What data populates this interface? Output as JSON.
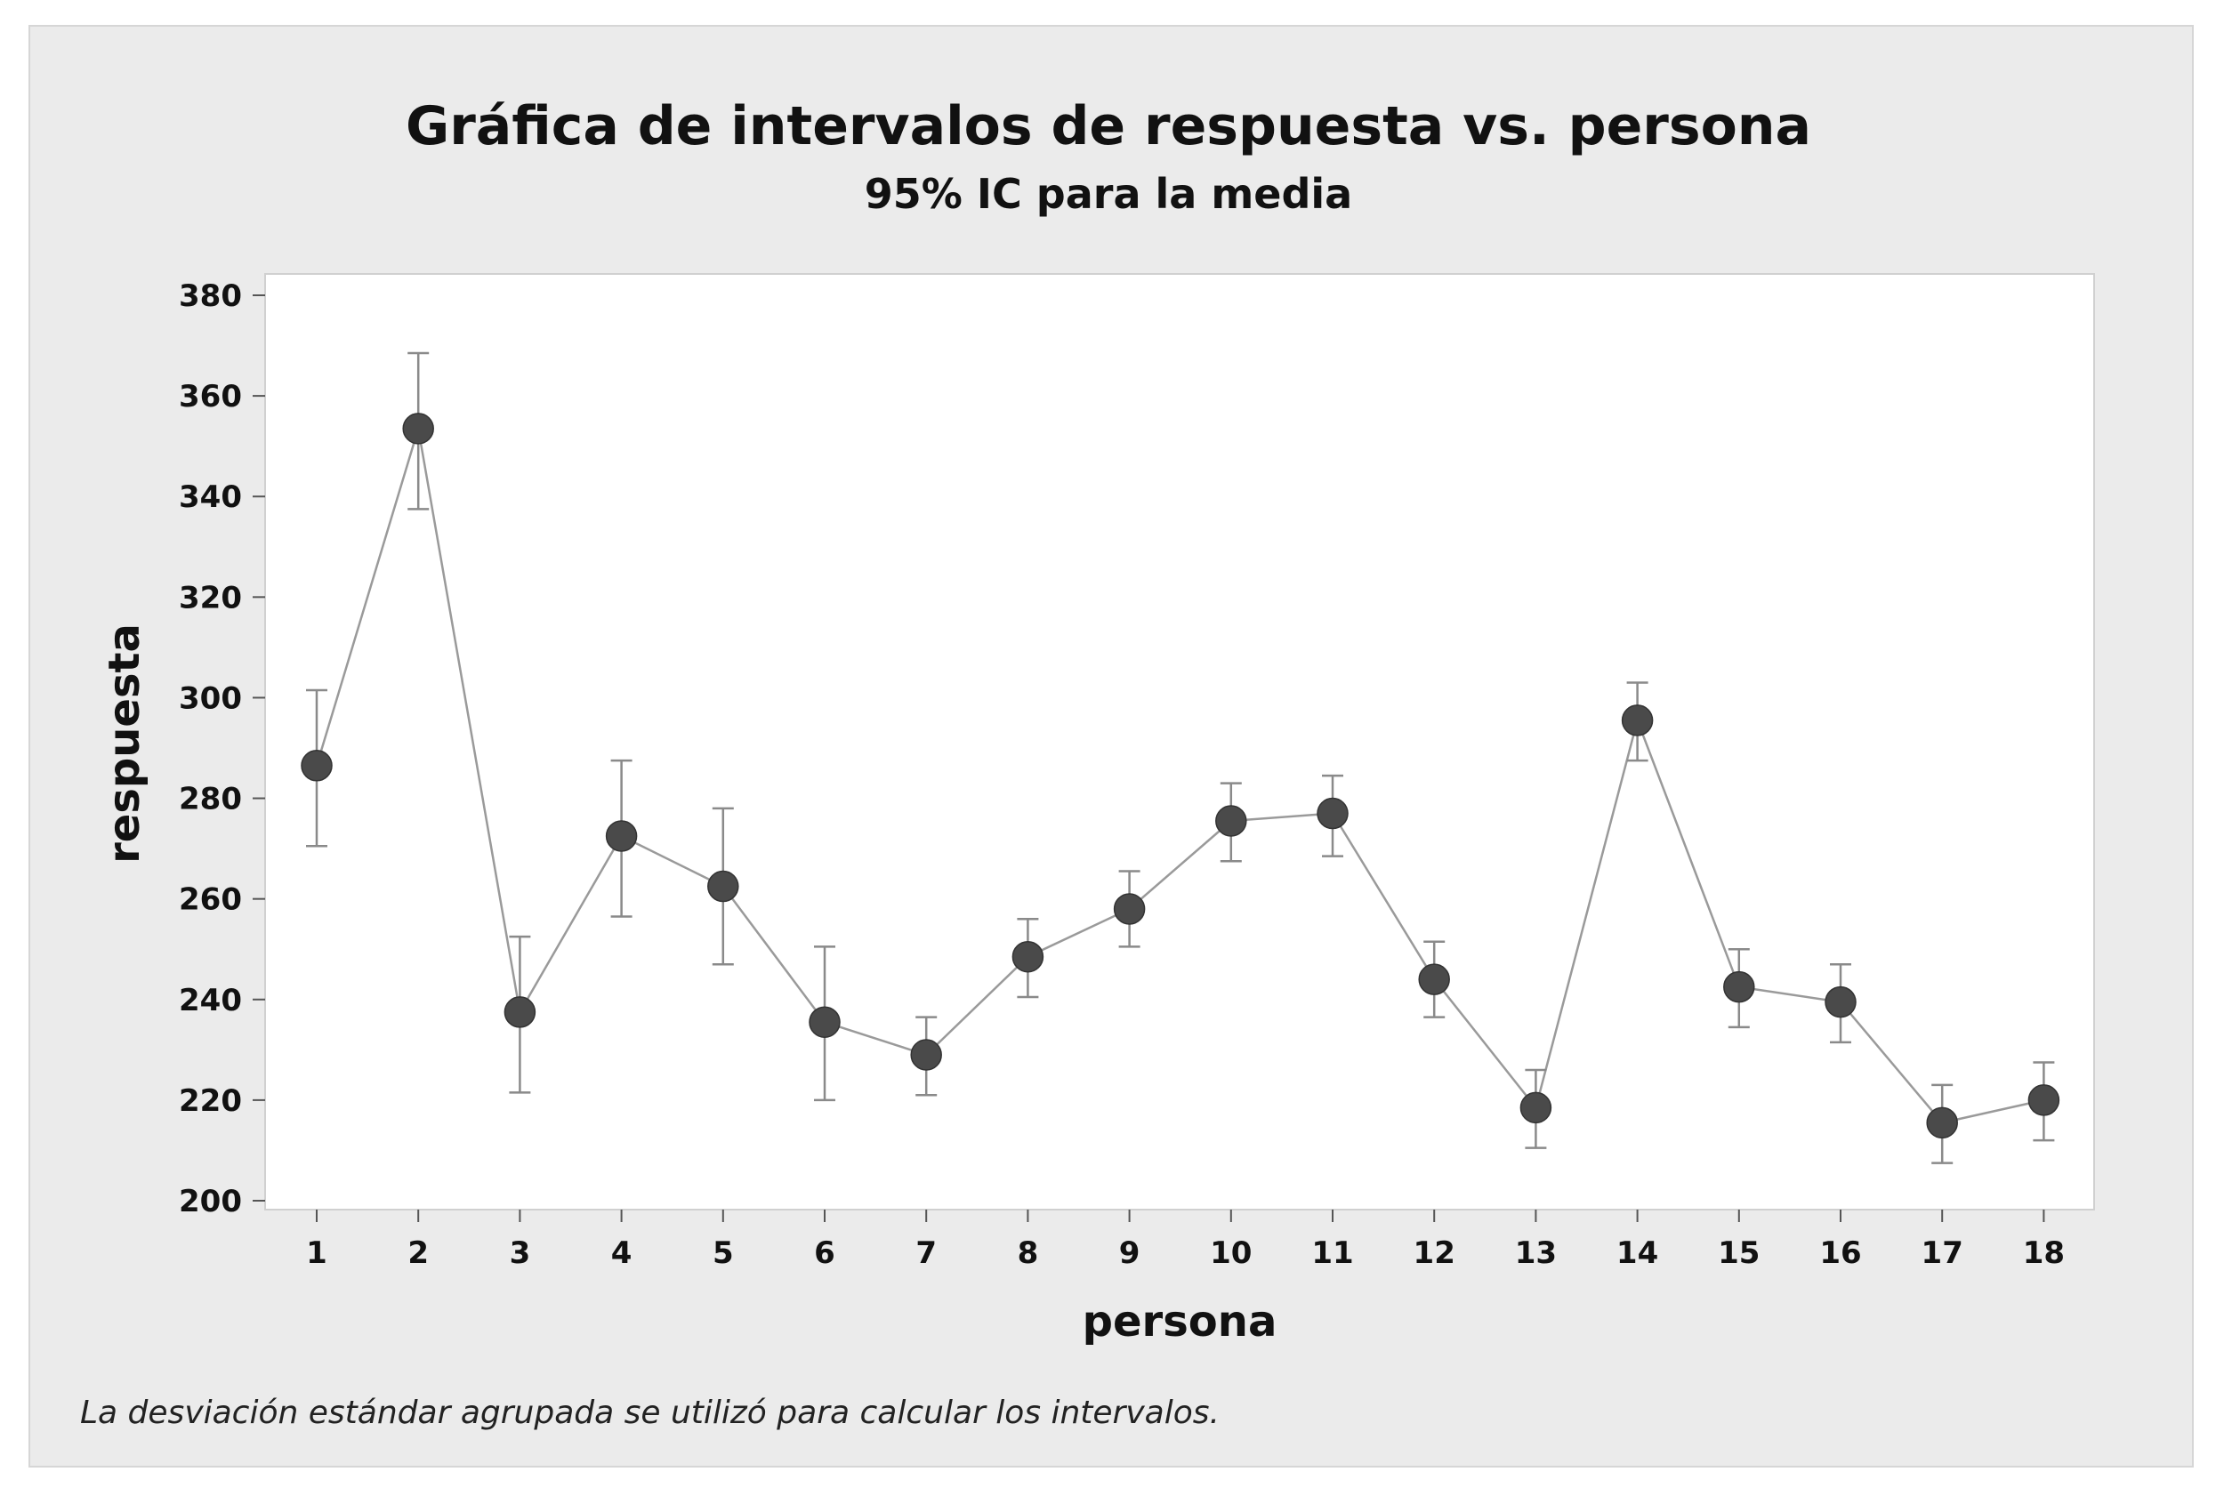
{
  "chart_data": {
    "type": "scatter",
    "title": "Gráfica de intervalos de respuesta vs. persona",
    "subtitle": "95% IC para la media",
    "xlabel": "persona",
    "ylabel": "respuesta",
    "footnote": "La desviación estándar agrupada se utilizó para calcular los intervalos.",
    "ylim": [
      200,
      380
    ],
    "yticks": [
      200,
      220,
      240,
      260,
      280,
      300,
      320,
      340,
      360,
      380
    ],
    "categories": [
      "1",
      "2",
      "3",
      "4",
      "5",
      "6",
      "7",
      "8",
      "9",
      "10",
      "11",
      "12",
      "13",
      "14",
      "15",
      "16",
      "17",
      "18"
    ],
    "series": [
      {
        "means": [
          286.5,
          353.5,
          237.5,
          272.5,
          262.5,
          235.5,
          229,
          248.5,
          258,
          275.5,
          277,
          244,
          218.5,
          295.5,
          242.5,
          239.5,
          215.5,
          220
        ],
        "lower": [
          270.5,
          337.5,
          221.5,
          256.5,
          247,
          220,
          221,
          240.5,
          250.5,
          267.5,
          268.5,
          236.5,
          210.5,
          287.5,
          234.5,
          231.5,
          207.5,
          212
        ],
        "upper": [
          301.5,
          368.5,
          252.5,
          287.5,
          278,
          250.5,
          236.5,
          256,
          265.5,
          283,
          284.5,
          251.5,
          226,
          303,
          250,
          247,
          223,
          227.5
        ]
      }
    ],
    "grid": false,
    "legend": "none",
    "colors": {
      "panel_bg": "#ebebeb",
      "plot_bg": "#ffffff",
      "marker": "#4a4a4a",
      "line": "#9a9a9a",
      "errorbar": "#8a8a8a"
    }
  }
}
